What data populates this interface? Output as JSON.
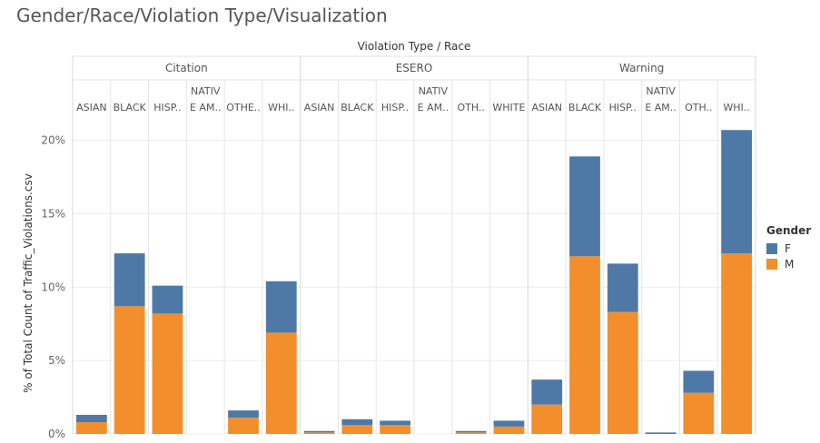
{
  "title": "Gender/Race/Violation Type/Visualization",
  "header_title": "Violation Type  /  Race",
  "legend": {
    "title": "Gender",
    "items": [
      {
        "label": "F",
        "color": "#4e79a7"
      },
      {
        "label": "M",
        "color": "#f28e2b"
      }
    ]
  },
  "chart_data": {
    "type": "bar",
    "stacked": true,
    "title": "Gender/Race/Violation Type/Visualization",
    "ylabel": "% of Total Count of Traffic_Violations.csv",
    "ylim": [
      0,
      20.9
    ],
    "yticks": [
      0,
      5,
      10,
      15,
      20
    ],
    "ytick_labels": [
      "0%",
      "5%",
      "10%",
      "15%",
      "20%"
    ],
    "grid": true,
    "legend_position": "right",
    "groups": [
      {
        "name": "Citation",
        "categories": [
          "ASIAN",
          "BLACK",
          "HISP..",
          "NATIV E AM..",
          "OTHE..",
          "WHI.."
        ]
      },
      {
        "name": "ESERO",
        "categories": [
          "ASIAN",
          "BLACK",
          "HISP..",
          "NATIV E AM..",
          "OTH..",
          "WHITE"
        ]
      },
      {
        "name": "Warning",
        "categories": [
          "ASIAN",
          "BLACK",
          "HISP..",
          "NATIV E AM..",
          "OTH..",
          "WHI.."
        ]
      }
    ],
    "series": [
      {
        "name": "M",
        "color": "#f28e2b",
        "values": [
          0.8,
          8.7,
          8.2,
          0.0,
          1.1,
          6.9,
          0.1,
          0.6,
          0.6,
          0.0,
          0.1,
          0.5,
          2.0,
          12.1,
          8.3,
          0.0,
          2.8,
          12.3
        ]
      },
      {
        "name": "F",
        "color": "#4e79a7",
        "values": [
          0.5,
          3.6,
          1.9,
          0.0,
          0.5,
          3.5,
          0.1,
          0.4,
          0.3,
          0.0,
          0.1,
          0.4,
          1.7,
          6.8,
          3.3,
          0.1,
          1.5,
          8.4
        ]
      }
    ]
  }
}
